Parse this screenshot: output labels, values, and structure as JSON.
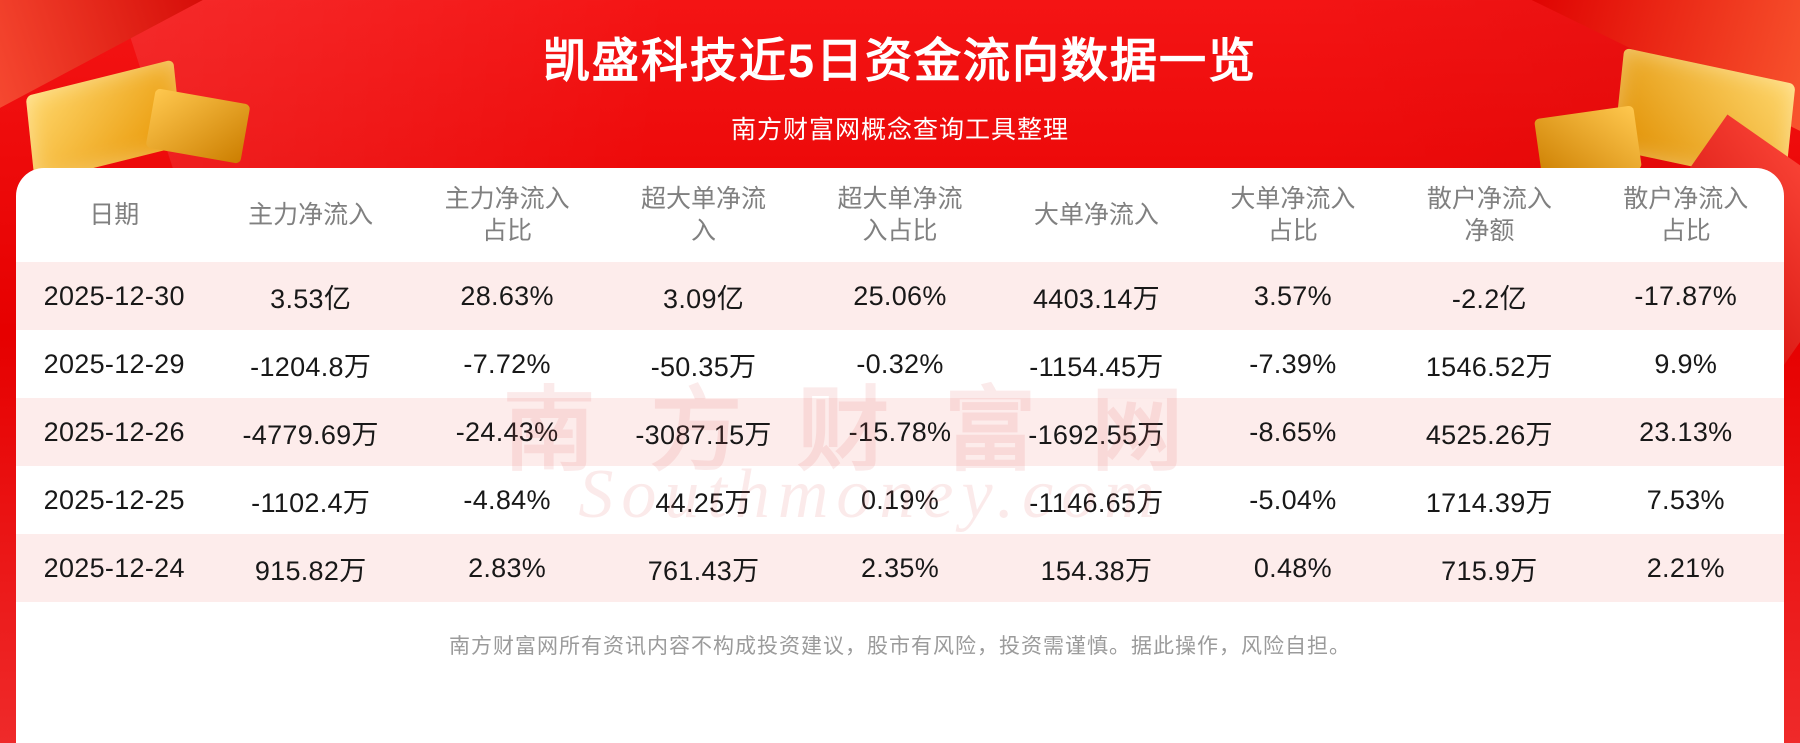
{
  "banner": {
    "title": "凯盛科技近5日资金流向数据一览",
    "subtitle": "南方财富网概念查询工具整理"
  },
  "chart_data": {
    "type": "table",
    "title": "凯盛科技近5日资金流向数据一览",
    "columns": [
      "日期",
      "主力净流入",
      "主力净流入占比",
      "超大单净流入",
      "超大单净流入占比",
      "大单净流入",
      "大单净流入占比",
      "散户净流入净额",
      "散户净流入占比"
    ],
    "rows": [
      [
        "2025-12-30",
        "3.53亿",
        "28.63%",
        "3.09亿",
        "25.06%",
        "4403.14万",
        "3.57%",
        "-2.2亿",
        "-17.87%"
      ],
      [
        "2025-12-29",
        "-1204.8万",
        "-7.72%",
        "-50.35万",
        "-0.32%",
        "-1154.45万",
        "-7.39%",
        "1546.52万",
        "9.9%"
      ],
      [
        "2025-12-26",
        "-4779.69万",
        "-24.43%",
        "-3087.15万",
        "-15.78%",
        "-1692.55万",
        "-8.65%",
        "4525.26万",
        "23.13%"
      ],
      [
        "2025-12-25",
        "-1102.4万",
        "-4.84%",
        "44.25万",
        "0.19%",
        "-1146.65万",
        "-5.04%",
        "1714.39万",
        "7.53%"
      ],
      [
        "2025-12-24",
        "915.82万",
        "2.83%",
        "761.43万",
        "2.35%",
        "154.38万",
        "0.48%",
        "715.9万",
        "2.21%"
      ]
    ]
  },
  "watermark": {
    "line1": "南方财富网",
    "line2": "Southmoney.com"
  },
  "footer": {
    "disclaimer": "南方财富网所有资讯内容不构成投资建议，股市有风险，投资需谨慎。据此操作，风险自担。"
  },
  "colors": {
    "banner_red": "#e60000",
    "row_stripe": "#fdeceb",
    "accent_gold": "#f0a31a",
    "header_text": "#808080",
    "body_text": "#181818"
  }
}
